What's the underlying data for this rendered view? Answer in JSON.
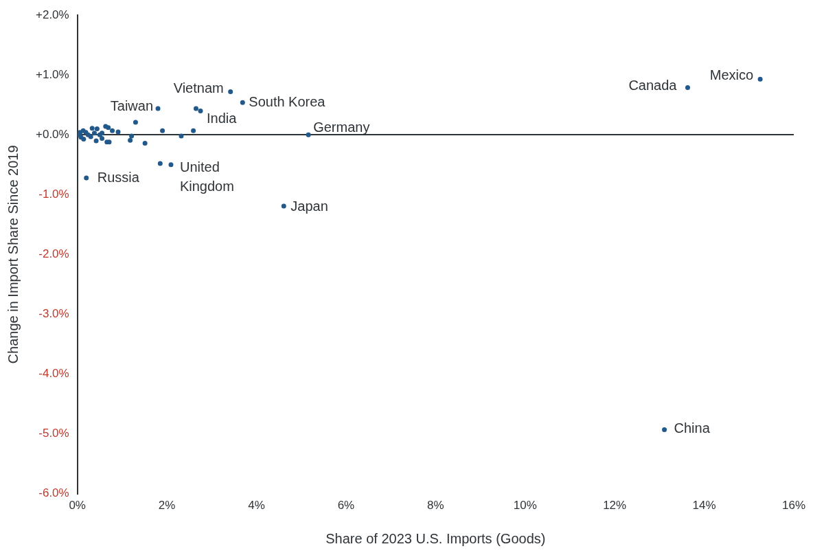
{
  "chart_data": {
    "type": "scatter",
    "x_label": "Share of 2023 U.S. Imports (Goods)",
    "y_label": "Change in Import Share Since 2019",
    "x": [
      15.25,
      13.63,
      13.11,
      5.16,
      4.61,
      3.69,
      3.42,
      2.75,
      1.8,
      2.09,
      0.2,
      2.65,
      1.85,
      2.59,
      2.32,
      1.9,
      1.3,
      1.51,
      1.21,
      1.18,
      0.91,
      0.78,
      0.71,
      0.66,
      0.63,
      0.69,
      0.55,
      0.55,
      0.5,
      0.44,
      0.42,
      0.33,
      0.3,
      0.19,
      0.13,
      0.08,
      0.05,
      0.14,
      0.24,
      0.38,
      0.06
    ],
    "values": [
      0.93,
      0.79,
      -4.93,
      0.0,
      -1.19,
      0.54,
      0.72,
      0.4,
      0.44,
      -0.5,
      -0.72,
      0.44,
      -0.48,
      0.07,
      -0.02,
      0.07,
      0.21,
      -0.14,
      -0.02,
      -0.09,
      0.05,
      0.07,
      -0.12,
      -0.12,
      0.14,
      0.12,
      0.03,
      -0.06,
      0.0,
      0.1,
      -0.1,
      0.11,
      -0.03,
      0.04,
      0.07,
      -0.04,
      0.0,
      -0.07,
      0.0,
      0.03,
      0.04
    ],
    "point_labels": [
      "Mexico",
      "Canada",
      "China",
      "Germany",
      "Japan",
      "South Korea",
      "Vietnam",
      "India",
      "Taiwan",
      "United Kingdom",
      "Russia",
      null,
      null,
      null,
      null,
      null,
      null,
      null,
      null,
      null,
      null,
      null,
      null,
      null,
      null,
      null,
      null,
      null,
      null,
      null,
      null,
      null,
      null,
      null,
      null,
      null,
      null,
      null,
      null,
      null,
      null
    ],
    "color": "#22598a",
    "marker": "circle",
    "xlim": [
      0,
      16
    ],
    "xticks": [
      {
        "value": 0,
        "label": "0%"
      },
      {
        "value": 2,
        "label": "2%"
      },
      {
        "value": 4,
        "label": "4%"
      },
      {
        "value": 6,
        "label": "6%"
      },
      {
        "value": 8,
        "label": "8%"
      },
      {
        "value": 10,
        "label": "10%"
      },
      {
        "value": 12,
        "label": "12%"
      },
      {
        "value": 14,
        "label": "14%"
      },
      {
        "value": 16,
        "label": "16%"
      }
    ],
    "ylim": [
      -6,
      2
    ],
    "yticks": [
      {
        "value": 2,
        "label": "+2.0%"
      },
      {
        "value": 1,
        "label": "+1.0%"
      },
      {
        "value": 0,
        "label": "+0.0%"
      },
      {
        "value": -1,
        "label": "-1.0%"
      },
      {
        "value": -2,
        "label": "-2.0%"
      },
      {
        "value": -3,
        "label": "-3.0%"
      },
      {
        "value": -4,
        "label": "-4.0%"
      },
      {
        "value": -5,
        "label": "-5.0%"
      },
      {
        "value": -6,
        "label": "-6.0%"
      }
    ],
    "grid": false
  }
}
